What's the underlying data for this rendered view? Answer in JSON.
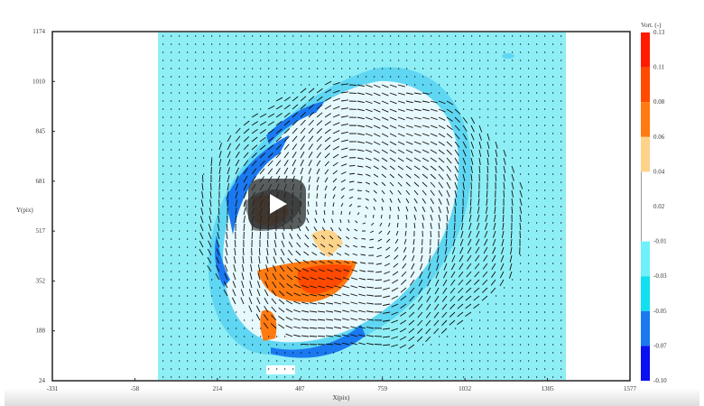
{
  "chart_data": {
    "type": "contour-vector",
    "xlabel": "X(pix)",
    "ylabel": "Y(pix)",
    "xlim": [
      -331,
      1577
    ],
    "ylim": [
      24,
      1174
    ],
    "xticks": [
      "-331",
      "-58",
      "214",
      "487",
      "759",
      "1032",
      "1305",
      "1577"
    ],
    "yticks": [
      "24",
      "188",
      "352",
      "517",
      "681",
      "845",
      "1010",
      "1174"
    ],
    "colorbar": {
      "title": "Vort. (-)",
      "labels": [
        "0.13",
        "0.11",
        "0.08",
        "0.06",
        "0.04",
        "0.02",
        "-0.01",
        "-0.03",
        "-0.05",
        "-0.07",
        "-0.10"
      ],
      "colors": [
        "#ff1a00",
        "#ff4a00",
        "#ff7a10",
        "#fdd38a",
        "#ffffff",
        "#ffffff",
        "#70f0fa",
        "#10e0f0",
        "#1a78f0",
        "#0a10f0"
      ]
    },
    "background_color": "#8eeef6"
  },
  "player": {
    "play_icon": "play-icon"
  }
}
